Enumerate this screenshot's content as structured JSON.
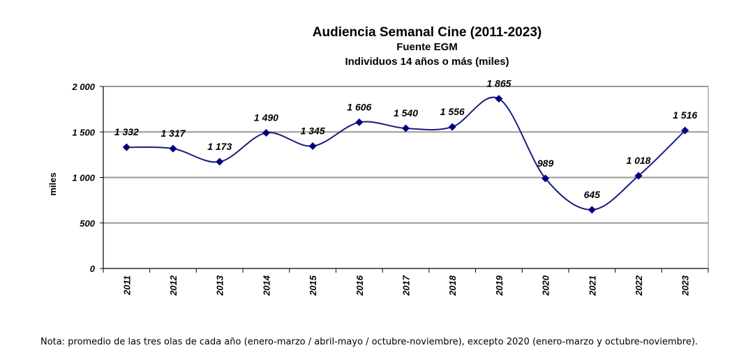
{
  "chart_data": {
    "type": "line",
    "title": "Audiencia  Semanal  Cine  (2011-2023)",
    "subtitle1": "Fuente EGM",
    "subtitle2": "Individuos 14 años o más (miles)",
    "ylabel": "miles",
    "xlabel": "",
    "ylim": [
      0,
      2000
    ],
    "yticks": [
      0,
      500,
      1000,
      1500,
      2000
    ],
    "ytick_labels": [
      "0",
      "500",
      "1 000",
      "1 500",
      "2 000"
    ],
    "grid": true,
    "categories": [
      "2011",
      "2012",
      "2013",
      "2014",
      "2015",
      "2016",
      "2017",
      "2018",
      "2019",
      "2020",
      "2021",
      "2022",
      "2023"
    ],
    "values": [
      1332,
      1317,
      1173,
      1490,
      1345,
      1606,
      1540,
      1556,
      1865,
      989,
      645,
      1018,
      1516
    ],
    "data_labels": [
      "1 332",
      "1 317",
      "1 173",
      "1 490",
      "1 345",
      "1 606",
      "1 540",
      "1 556",
      "1 865",
      "989",
      "645",
      "1 018",
      "1 516"
    ],
    "line_color": "#1a1a7e",
    "marker_color": "#000080",
    "gridline_color": "#999999",
    "plot_background": "#ffffff"
  },
  "note": "Nota: promedio de las tres olas de cada año (enero-marzo / abril-mayo / octubre-noviembre), excepto 2020 (enero-marzo y octubre-noviembre)."
}
